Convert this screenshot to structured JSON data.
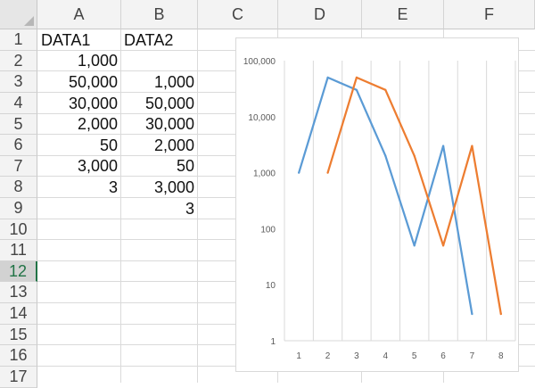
{
  "sheet": {
    "columns": [
      "A",
      "B",
      "C",
      "D",
      "E",
      "F"
    ],
    "rows": [
      "1",
      "2",
      "3",
      "4",
      "5",
      "6",
      "7",
      "8",
      "9",
      "10",
      "11",
      "12",
      "13",
      "14",
      "15",
      "16",
      "17"
    ],
    "selected_row": "12",
    "cells": {
      "A1": "DATA1",
      "B1": "DATA2",
      "A2": "1,000",
      "A3": "50,000",
      "B3": "1,000",
      "A4": "30,000",
      "B4": "50,000",
      "A5": "2,000",
      "B5": "30,000",
      "A6": "50",
      "B6": "2,000",
      "A7": "3,000",
      "B7": "50",
      "A8": "3",
      "B8": "3,000",
      "B9": "3"
    }
  },
  "chart_data": {
    "type": "line",
    "title": "",
    "xlabel": "",
    "ylabel": "",
    "y_scale": "log",
    "ylim": [
      1,
      100000
    ],
    "grid": "vertical gridlines",
    "legend": "none",
    "x": [
      1,
      2,
      3,
      4,
      5,
      6,
      7,
      8
    ],
    "x_tick_labels": [
      "1",
      "2",
      "3",
      "4",
      "5",
      "6",
      "7",
      "8"
    ],
    "y_tick_labels": [
      "1",
      "10",
      "100",
      "1,000",
      "10,000",
      "100,000"
    ],
    "y_tick_values": [
      1,
      10,
      100,
      1000,
      10000,
      100000
    ],
    "series": [
      {
        "values": [
          1000,
          50000,
          30000,
          2000,
          50,
          3000,
          3,
          null
        ],
        "color": "#5b9bd5"
      },
      {
        "values": [
          null,
          1000,
          50000,
          30000,
          2000,
          50,
          3000,
          3
        ],
        "color": "#ed7d31"
      }
    ]
  }
}
